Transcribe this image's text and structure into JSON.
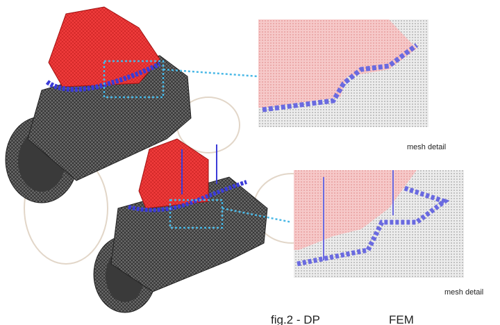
{
  "labels": {
    "detail_top": "mesh detail",
    "detail_bottom": "mesh detail"
  },
  "caption": {
    "part1": "fig.2 - DP",
    "part2": "FEM"
  }
}
